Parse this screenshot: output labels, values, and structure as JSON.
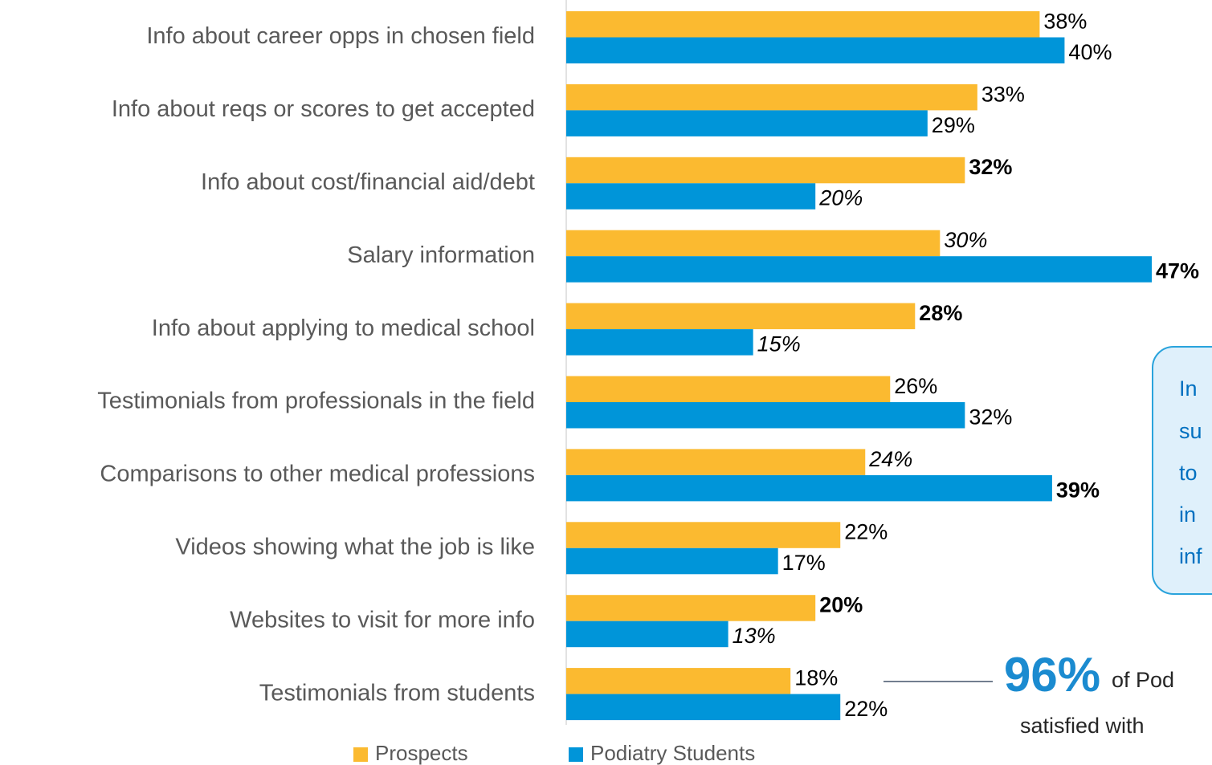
{
  "chart_data": {
    "type": "bar",
    "orientation": "horizontal",
    "categories": [
      "Info about career opps in chosen field",
      "Info about reqs or scores to get accepted",
      "Info about cost/financial aid/debt",
      "Salary information",
      "Info about applying to medical school",
      "Testimonials from professionals in the field",
      "Comparisons to other medical professions",
      "Videos showing what the job is like",
      "Websites to visit for more info",
      "Testimonials from students"
    ],
    "series": [
      {
        "name": "Prospects",
        "color": "#fbba30",
        "values": [
          38,
          33,
          32,
          30,
          28,
          26,
          24,
          22,
          20,
          18
        ],
        "value_labels": [
          "38%",
          "33%",
          "32%",
          "30%",
          "28%",
          "26%",
          "24%",
          "22%",
          "20%",
          "18%"
        ],
        "label_styles": [
          "normal",
          "normal",
          "bold",
          "italic",
          "bold",
          "normal",
          "italic",
          "normal",
          "bold",
          "normal"
        ]
      },
      {
        "name": "Podiatry Students",
        "color": "#0095d9",
        "values": [
          40,
          29,
          20,
          47,
          15,
          32,
          39,
          17,
          13,
          22
        ],
        "value_labels": [
          "40%",
          "29%",
          "20%",
          "47%",
          "15%",
          "32%",
          "39%",
          "17%",
          "13%",
          "22%"
        ],
        "label_styles": [
          "normal",
          "normal",
          "italic",
          "bold",
          "italic",
          "normal",
          "bold",
          "normal",
          "italic",
          "normal"
        ]
      }
    ],
    "legend": "bottom",
    "annotations": {
      "box_lines": [
        "In",
        "su",
        "to",
        "in",
        "inf"
      ],
      "stat": "96%",
      "stat_text": "of Pod",
      "stat_line2": "satisfied with"
    }
  }
}
